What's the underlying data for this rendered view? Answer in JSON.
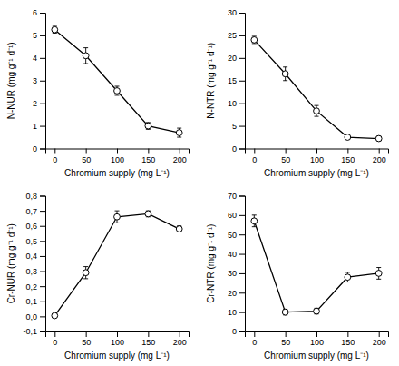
{
  "chart_data": [
    {
      "type": "line",
      "x": [
        0,
        50,
        100,
        150,
        200
      ],
      "values": [
        5.25,
        4.1,
        2.55,
        1.0,
        0.7
      ],
      "errors": [
        0.15,
        0.35,
        0.2,
        0.15,
        0.2
      ],
      "xlabel": "Chromium supply (mg L⁻¹)",
      "ylabel": "N-NUR (mg g⁻¹ d⁻¹)",
      "xlim": [
        -15,
        215
      ],
      "xticks": [
        0,
        50,
        100,
        150,
        200
      ],
      "ylim": [
        0,
        6
      ],
      "yticks": [
        0,
        1,
        2,
        3,
        4,
        5,
        6
      ],
      "color": "black",
      "marker": "o",
      "grid": false
    },
    {
      "type": "line",
      "x": [
        0,
        50,
        100,
        150,
        200
      ],
      "values": [
        24.0,
        16.5,
        8.3,
        2.5,
        2.2
      ],
      "errors": [
        0.8,
        1.5,
        1.2,
        0.4,
        0.5
      ],
      "xlabel": "Chromium supply (mg L⁻¹)",
      "ylabel": "N-NTR (mg g⁻¹ d⁻¹)",
      "xlim": [
        -15,
        215
      ],
      "xticks": [
        0,
        50,
        100,
        150,
        200
      ],
      "ylim": [
        0,
        30
      ],
      "yticks": [
        0,
        5,
        10,
        15,
        20,
        25,
        30
      ],
      "color": "black",
      "marker": "o",
      "grid": false
    },
    {
      "type": "line",
      "x": [
        0,
        50,
        100,
        150,
        200
      ],
      "values": [
        0.005,
        0.29,
        0.66,
        0.68,
        0.58
      ],
      "errors": [
        0.01,
        0.04,
        0.04,
        0.02,
        0.02
      ],
      "xlabel": "Chromium supply (mg L⁻¹)",
      "ylabel": "Cr-NUR (mg g⁻¹ d⁻¹)",
      "xlim": [
        -15,
        215
      ],
      "xticks": [
        0,
        50,
        100,
        150,
        200
      ],
      "ylim": [
        -0.1,
        0.8
      ],
      "yticks": [
        {
          "value": -0.1,
          "label": "-0,1"
        },
        {
          "value": 0.0,
          "label": "0,0"
        },
        {
          "value": 0.1,
          "label": "0,1"
        },
        {
          "value": 0.2,
          "label": "0,2"
        },
        {
          "value": 0.3,
          "label": "0,3"
        },
        {
          "value": 0.4,
          "label": "0,4"
        },
        {
          "value": 0.5,
          "label": "0,5"
        },
        {
          "value": 0.6,
          "label": "0,6"
        },
        {
          "value": 0.7,
          "label": "0,7"
        },
        {
          "value": 0.8,
          "label": "0,8"
        }
      ],
      "color": "black",
      "marker": "o",
      "grid": false
    },
    {
      "type": "line",
      "x": [
        0,
        50,
        100,
        150,
        200
      ],
      "values": [
        57.0,
        10.0,
        10.5,
        28.0,
        30.0
      ],
      "errors": [
        3.0,
        1.5,
        1.5,
        2.5,
        3.0
      ],
      "xlabel": "Chromium supply (mg L⁻¹)",
      "ylabel": "Cr-NTR (mg g⁻¹ d⁻¹)",
      "xlim": [
        -15,
        215
      ],
      "xticks": [
        0,
        50,
        100,
        150,
        200
      ],
      "ylim": [
        0,
        70
      ],
      "yticks": [
        0,
        10,
        20,
        30,
        40,
        50,
        60,
        70
      ],
      "color": "black",
      "marker": "o",
      "grid": false
    }
  ]
}
